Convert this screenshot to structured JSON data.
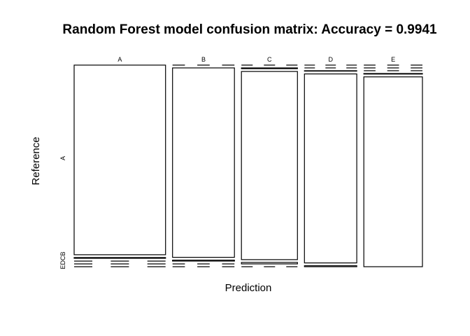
{
  "chart_data": {
    "type": "mosaic",
    "title": "Random Forest model confusion matrix: Accuracy = 0.9941",
    "xlabel": "Prediction",
    "ylabel": "Reference",
    "top_labels": [
      "A",
      "B",
      "C",
      "D",
      "E"
    ],
    "left_major_label": "A",
    "left_minor_labels": "EDCB",
    "prediction_classes": [
      "A",
      "B",
      "C",
      "D",
      "E"
    ],
    "reference_classes": [
      "A",
      "B",
      "C",
      "D",
      "E"
    ],
    "matrix": [
      [
        1674,
        7,
        0,
        0,
        0
      ],
      [
        0,
        1132,
        6,
        0,
        0
      ],
      [
        0,
        4,
        1018,
        8,
        0
      ],
      [
        0,
        0,
        2,
        955,
        5
      ],
      [
        0,
        0,
        0,
        3,
        1075
      ]
    ],
    "accuracy": 0.9941
  }
}
